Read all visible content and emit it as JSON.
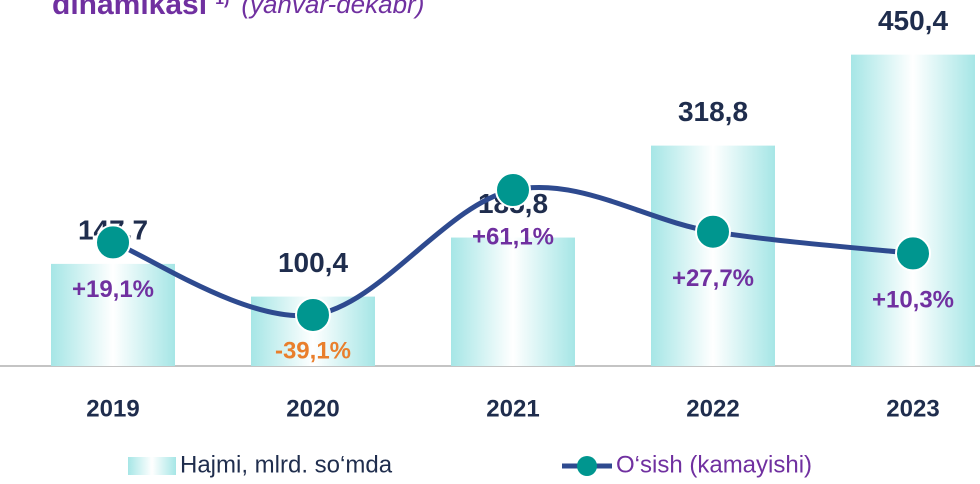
{
  "chart_data": {
    "type": "bar_line",
    "title": "dinamikasi",
    "title_note": "1)",
    "subtitle": "(yanvar-dekabr)",
    "categories": [
      "2019",
      "2020",
      "2021",
      "2022",
      "2023"
    ],
    "ylim": [
      0,
      460
    ],
    "y2lim": [
      -80,
      175
    ],
    "series": [
      {
        "name": "Hajmi, mlrd. so‘mda",
        "type": "bar",
        "color": "#a6e6e6",
        "values": [
          147.7,
          100.4,
          185.8,
          318.8,
          450.4
        ],
        "value_labels": [
          "147,7",
          "100,4",
          "185,8",
          "318,8",
          "450,4"
        ]
      },
      {
        "name": "O‘sish (kamayishi)",
        "type": "line",
        "axis": "y2",
        "color": "#2e4a8f",
        "marker_color": "#00968f",
        "label_color": "#7030a0",
        "negative_label_color": "#e97f2c",
        "values": [
          19.1,
          -39.1,
          61.1,
          27.7,
          10.3
        ],
        "value_labels": [
          "+19,1%",
          "-39,1%",
          "+61,1%",
          "+27,7%",
          "+10,3%"
        ]
      }
    ]
  }
}
